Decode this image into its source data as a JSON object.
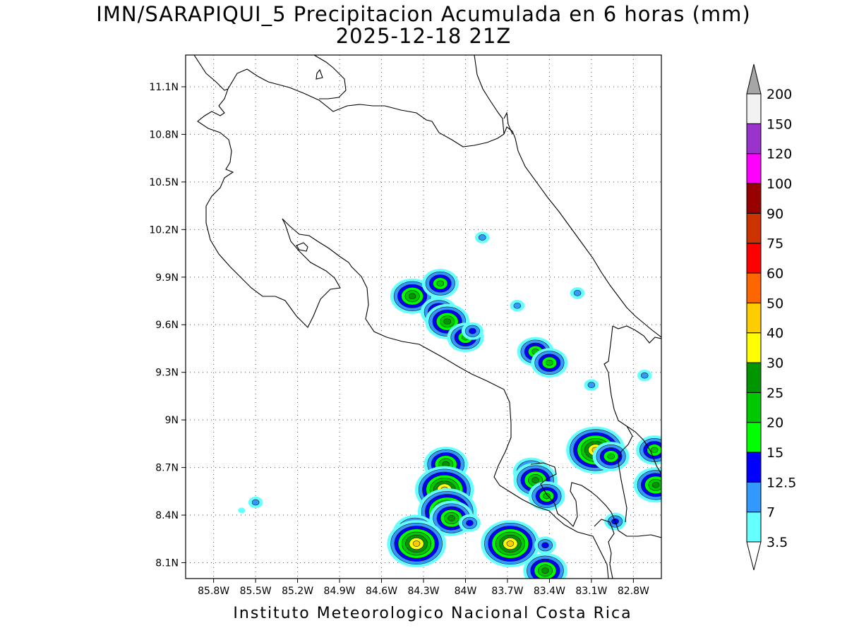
{
  "title": {
    "line1": "IMN/SARAPIQUI_5 Precipitacion Acumulada en 6 horas (mm)",
    "line2": "2025-12-18 21Z"
  },
  "credit": "Instituto Meteorologico Nacional Costa Rica",
  "map": {
    "lon_range": [
      -86.0,
      -82.6
    ],
    "lat_range": [
      8.0,
      11.3
    ],
    "lon_ticks": [
      {
        "value": -85.8,
        "label": "85.8W"
      },
      {
        "value": -85.5,
        "label": "85.5W"
      },
      {
        "value": -85.2,
        "label": "85.2W"
      },
      {
        "value": -84.9,
        "label": "84.9W"
      },
      {
        "value": -84.6,
        "label": "84.6W"
      },
      {
        "value": -84.3,
        "label": "84.3W"
      },
      {
        "value": -84.0,
        "label": "84W"
      },
      {
        "value": -83.7,
        "label": "83.7W"
      },
      {
        "value": -83.4,
        "label": "83.4W"
      },
      {
        "value": -83.1,
        "label": "83.1W"
      },
      {
        "value": -82.8,
        "label": "82.8W"
      }
    ],
    "lat_ticks": [
      {
        "value": 8.1,
        "label": "8.1N"
      },
      {
        "value": 8.4,
        "label": "8.4N"
      },
      {
        "value": 8.7,
        "label": "8.7N"
      },
      {
        "value": 9.0,
        "label": "9N"
      },
      {
        "value": 9.3,
        "label": "9.3N"
      },
      {
        "value": 9.6,
        "label": "9.6N"
      },
      {
        "value": 9.9,
        "label": "9.9N"
      },
      {
        "value": 10.2,
        "label": "10.2N"
      },
      {
        "value": 10.5,
        "label": "10.5N"
      },
      {
        "value": 10.8,
        "label": "10.8N"
      },
      {
        "value": 11.1,
        "label": "11.1N"
      }
    ],
    "grid": true,
    "precip_cells": [
      {
        "lon": -84.38,
        "lat": 9.78,
        "value": 25
      },
      {
        "lon": -84.18,
        "lat": 9.86,
        "value": 20
      },
      {
        "lon": -84.19,
        "lat": 9.68,
        "value": 20
      },
      {
        "lon": -84.13,
        "lat": 9.62,
        "value": 25
      },
      {
        "lon": -84.0,
        "lat": 9.52,
        "value": 20
      },
      {
        "lon": -83.95,
        "lat": 9.56,
        "value": 12.5
      },
      {
        "lon": -83.88,
        "lat": 10.15,
        "value": 7
      },
      {
        "lon": -83.63,
        "lat": 9.72,
        "value": 7
      },
      {
        "lon": -83.5,
        "lat": 9.43,
        "value": 20
      },
      {
        "lon": -83.4,
        "lat": 9.36,
        "value": 20
      },
      {
        "lon": -83.2,
        "lat": 9.8,
        "value": 7
      },
      {
        "lon": -83.1,
        "lat": 9.22,
        "value": 7
      },
      {
        "lon": -82.72,
        "lat": 9.28,
        "value": 7
      },
      {
        "lon": -83.07,
        "lat": 8.81,
        "value": 40
      },
      {
        "lon": -82.96,
        "lat": 8.77,
        "value": 20
      },
      {
        "lon": -83.53,
        "lat": 8.67,
        "value": 20
      },
      {
        "lon": -83.5,
        "lat": 8.62,
        "value": 25
      },
      {
        "lon": -82.65,
        "lat": 8.81,
        "value": 20
      },
      {
        "lon": -82.64,
        "lat": 8.59,
        "value": 25
      },
      {
        "lon": -84.14,
        "lat": 8.72,
        "value": 25
      },
      {
        "lon": -84.15,
        "lat": 8.56,
        "value": 40
      },
      {
        "lon": -84.13,
        "lat": 8.42,
        "value": 40
      },
      {
        "lon": -84.1,
        "lat": 8.38,
        "value": 25
      },
      {
        "lon": -83.97,
        "lat": 8.35,
        "value": 12.5
      },
      {
        "lon": -84.36,
        "lat": 8.29,
        "value": 25
      },
      {
        "lon": -84.35,
        "lat": 8.22,
        "value": 40
      },
      {
        "lon": -83.68,
        "lat": 8.22,
        "value": 40
      },
      {
        "lon": -83.43,
        "lat": 8.05,
        "value": 25
      },
      {
        "lon": -83.43,
        "lat": 8.21,
        "value": 12.5
      },
      {
        "lon": -83.42,
        "lat": 8.52,
        "value": 20
      },
      {
        "lon": -85.5,
        "lat": 8.48,
        "value": 7
      },
      {
        "lon": -85.6,
        "lat": 8.43,
        "value": 3.5
      },
      {
        "lon": -82.93,
        "lat": 8.36,
        "value": 12.5
      }
    ]
  },
  "colorbar": {
    "levels": [
      "3.5",
      "7",
      "12.5",
      "15",
      "20",
      "25",
      "30",
      "40",
      "50",
      "60",
      "75",
      "90",
      "100",
      "120",
      "150",
      "200"
    ],
    "colors": [
      "#66ffff",
      "#3399ff",
      "#0000ff",
      "#00ff00",
      "#00c800",
      "#009600",
      "#ffff00",
      "#ffcc00",
      "#ff6600",
      "#ff0000",
      "#cc3300",
      "#990000",
      "#ff00ff",
      "#9933cc",
      "#f2f2f2",
      "#a6a6a6"
    ]
  }
}
